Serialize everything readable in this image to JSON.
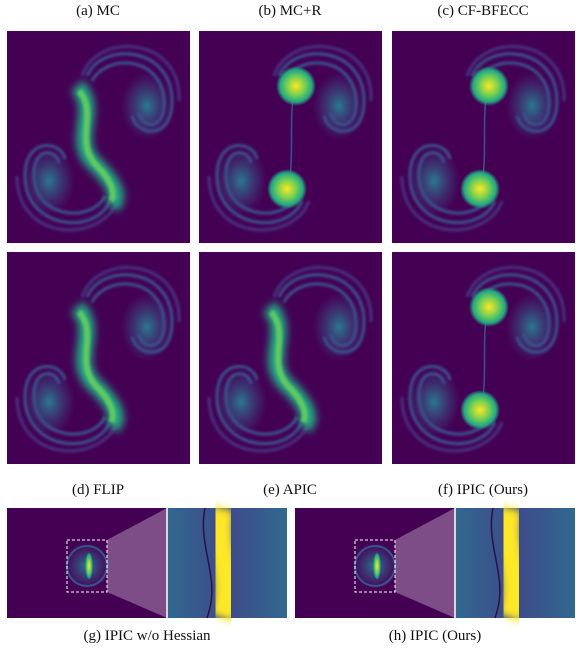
{
  "captions": {
    "top": [
      "(a) MC",
      "(b) MC+R",
      "(c) CF-BFECC"
    ],
    "middle": [
      "(d) FLIP",
      "(e) APIC",
      "(f) IPIC (Ours)"
    ],
    "bottom": [
      "(g) IPIC w/o Hessian",
      "(h) IPIC (Ours)"
    ]
  }
}
